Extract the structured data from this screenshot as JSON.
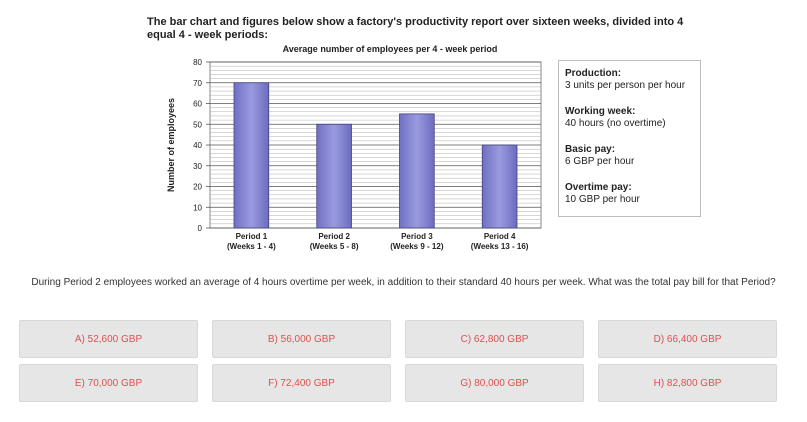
{
  "intro_lines": [
    "The bar chart and figures below show a factory's productivity report over sixteen weeks, divided into 4",
    "equal 4 - week periods:"
  ],
  "chart_data": {
    "type": "bar",
    "title": "Average number of employees per 4 - week period",
    "ylabel": "Number of employees",
    "xlabel": "",
    "categories": [
      [
        "Period 1",
        "(Weeks 1 - 4)"
      ],
      [
        "Period 2",
        "(Weeks 5 - 8)"
      ],
      [
        "Period 3",
        "(Weeks 9 - 12)"
      ],
      [
        "Period 4",
        "(Weeks 13 - 16)"
      ]
    ],
    "values": [
      70,
      50,
      55,
      40
    ],
    "ylim": [
      0,
      80
    ],
    "yticks": [
      0,
      10,
      20,
      30,
      40,
      50,
      60,
      70,
      80
    ],
    "grid": true,
    "bar_color": "#8b8bd6"
  },
  "info": [
    {
      "label": "Production:",
      "value": "3 units per person per hour"
    },
    {
      "label": "Working week:",
      "value": "40 hours (no overtime)"
    },
    {
      "label": "Basic pay:",
      "value": "6 GBP per hour"
    },
    {
      "label": "Overtime pay:",
      "value": "10 GBP per hour"
    }
  ],
  "question": "During Period 2 employees worked an average of 4 hours overtime per week, in addition to their standard 40 hours per week. What was the total pay bill for that Period?",
  "answers": [
    "A) 52,600 GBP",
    "B) 56,000 GBP",
    "C) 62,800 GBP",
    "D) 66,400 GBP",
    "E) 70,000 GBP",
    "F) 72,400 GBP",
    "G) 80,000 GBP",
    "H) 82,800 GBP"
  ],
  "answer_color": "#d9534f"
}
